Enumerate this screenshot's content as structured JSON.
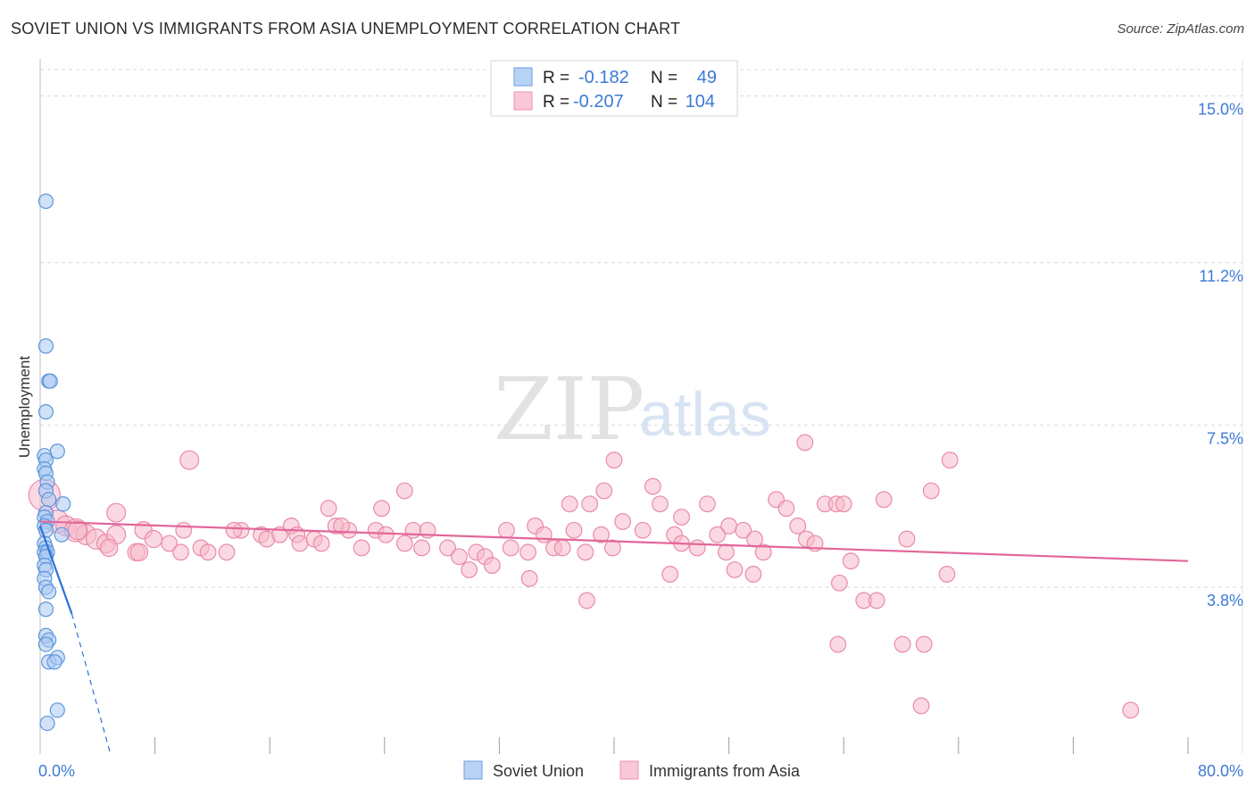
{
  "title": "SOVIET UNION VS IMMIGRANTS FROM ASIA UNEMPLOYMENT CORRELATION CHART",
  "source": "Source: ZipAtlas.com",
  "watermark": {
    "part1": "ZIP",
    "part2": "atlas"
  },
  "stats_box": {
    "rows": [
      {
        "r_label": "R =",
        "r_value": "-0.182",
        "n_label": "N =",
        "n_value": "49"
      },
      {
        "r_label": "R =",
        "r_value": "-0.207",
        "n_label": "N =",
        "n_value": "104"
      }
    ]
  },
  "colors": {
    "blue_fill": "#a9c8f2",
    "blue_stroke": "#5d95dc",
    "blue_line": "#2b72d6",
    "pink_fill": "#f7b9cb",
    "pink_stroke": "#e98aaa",
    "pink_line": "#e2679a",
    "grid": "#d9d9d9",
    "axis_text": "#3d7ad6"
  },
  "chart_data": {
    "type": "scatter",
    "title": "SOVIET UNION VS IMMIGRANTS FROM ASIA UNEMPLOYMENT CORRELATION CHART",
    "xlabel": "",
    "ylabel": "Unemployment",
    "xlim": [
      0,
      80
    ],
    "ylim": [
      0,
      15.6
    ],
    "x_tick_labels": [
      {
        "value": 0,
        "label": "0.0%"
      },
      {
        "value": 80,
        "label": "80.0%"
      }
    ],
    "x_minor_ticks": [
      8,
      16,
      24,
      32,
      40,
      48,
      56,
      64,
      72,
      80
    ],
    "y_ticks": [
      {
        "value": 3.8,
        "label": "3.8%"
      },
      {
        "value": 7.5,
        "label": "7.5%"
      },
      {
        "value": 11.2,
        "label": "11.2%"
      },
      {
        "value": 15.0,
        "label": "15.0%"
      }
    ],
    "legend_position": "bottom-center",
    "series": [
      {
        "name": "Soviet Union",
        "color": "blue",
        "r": -0.182,
        "n": 49,
        "trend": {
          "x0": 0.0,
          "y0": 5.2,
          "x1": 2.2,
          "y1": 3.2,
          "dash_x1": 4.9,
          "dash_y1": 0.0
        },
        "points": [
          [
            0.4,
            12.6,
            1
          ],
          [
            0.4,
            9.3,
            1
          ],
          [
            0.6,
            8.5,
            1
          ],
          [
            0.7,
            8.5,
            1
          ],
          [
            0.4,
            7.8,
            1
          ],
          [
            1.2,
            6.9,
            1
          ],
          [
            0.3,
            6.8,
            1
          ],
          [
            0.4,
            6.7,
            1
          ],
          [
            0.3,
            6.5,
            1
          ],
          [
            0.4,
            6.4,
            1
          ],
          [
            0.5,
            6.2,
            1
          ],
          [
            0.4,
            6.0,
            1
          ],
          [
            0.6,
            5.8,
            1
          ],
          [
            1.6,
            5.7,
            1
          ],
          [
            0.4,
            5.5,
            1
          ],
          [
            0.3,
            5.4,
            1
          ],
          [
            0.5,
            5.3,
            1
          ],
          [
            0.3,
            5.2,
            1
          ],
          [
            0.4,
            5.1,
            1
          ],
          [
            1.5,
            5.0,
            1
          ],
          [
            0.3,
            4.8,
            1
          ],
          [
            0.4,
            4.7,
            1
          ],
          [
            0.3,
            4.6,
            1
          ],
          [
            0.5,
            4.6,
            1
          ],
          [
            0.4,
            4.5,
            1
          ],
          [
            0.3,
            4.3,
            1
          ],
          [
            0.4,
            4.2,
            1
          ],
          [
            0.3,
            4.0,
            1
          ],
          [
            0.4,
            3.8,
            1
          ],
          [
            0.6,
            3.7,
            1
          ],
          [
            0.4,
            3.3,
            1
          ],
          [
            0.4,
            2.7,
            1
          ],
          [
            0.6,
            2.6,
            1
          ],
          [
            0.4,
            2.5,
            1
          ],
          [
            0.6,
            2.1,
            1
          ],
          [
            1.2,
            2.2,
            1
          ],
          [
            1.0,
            2.1,
            1
          ],
          [
            1.2,
            1.0,
            1
          ],
          [
            0.5,
            0.7,
            1
          ]
        ]
      },
      {
        "name": "Immigrants from Asia",
        "color": "pink",
        "r": -0.207,
        "n": 104,
        "trend": {
          "x0": 0.0,
          "y0": 5.3,
          "x1": 80.0,
          "y1": 4.4
        },
        "points": [
          [
            0.3,
            5.9,
            2.2
          ],
          [
            1.2,
            5.3,
            1.6
          ],
          [
            1.8,
            5.2,
            1.4
          ],
          [
            2.5,
            5.1,
            1.6
          ],
          [
            3.2,
            5.0,
            1.4
          ],
          [
            3.9,
            4.9,
            1.4
          ],
          [
            4.6,
            4.8,
            1.3
          ],
          [
            5.3,
            5.0,
            1.3
          ],
          [
            2.6,
            5.1,
            1.3
          ],
          [
            4.8,
            4.7,
            1.2
          ],
          [
            5.3,
            5.5,
            1.3
          ],
          [
            7.2,
            5.1,
            1.2
          ],
          [
            6.7,
            4.6,
            1.2
          ],
          [
            7.9,
            4.9,
            1.2
          ],
          [
            9.0,
            4.8,
            1.1
          ],
          [
            9.8,
            4.6,
            1.1
          ],
          [
            10.0,
            5.1,
            1.1
          ],
          [
            11.2,
            4.7,
            1.1
          ],
          [
            11.7,
            4.6,
            1.1
          ],
          [
            6.9,
            4.6,
            1.2
          ],
          [
            10.4,
            6.7,
            1.3
          ],
          [
            13.0,
            4.6,
            1.1
          ],
          [
            15.4,
            5.0,
            1.1
          ],
          [
            14.0,
            5.1,
            1.1
          ],
          [
            13.5,
            5.1,
            1.1
          ],
          [
            15.8,
            4.9,
            1.1
          ],
          [
            16.7,
            5.0,
            1.1
          ],
          [
            17.5,
            5.2,
            1.1
          ],
          [
            17.9,
            5.0,
            1.1
          ],
          [
            18.1,
            4.8,
            1.1
          ],
          [
            19.1,
            4.9,
            1.1
          ],
          [
            19.6,
            4.8,
            1.1
          ],
          [
            20.6,
            5.2,
            1.1
          ],
          [
            21.5,
            5.1,
            1.1
          ],
          [
            21.0,
            5.2,
            1.1
          ],
          [
            23.4,
            5.1,
            1.1
          ],
          [
            20.1,
            5.6,
            1.1
          ],
          [
            22.4,
            4.7,
            1.1
          ],
          [
            23.8,
            5.6,
            1.1
          ],
          [
            24.1,
            5.0,
            1.1
          ],
          [
            25.4,
            4.8,
            1.1
          ],
          [
            26.6,
            4.7,
            1.1
          ],
          [
            26.0,
            5.1,
            1.1
          ],
          [
            27.0,
            5.1,
            1.1
          ],
          [
            28.4,
            4.7,
            1.1
          ],
          [
            29.2,
            4.5,
            1.1
          ],
          [
            30.4,
            4.6,
            1.1
          ],
          [
            31.0,
            4.5,
            1.1
          ],
          [
            29.9,
            4.2,
            1.1
          ],
          [
            31.5,
            4.3,
            1.1
          ],
          [
            32.5,
            5.1,
            1.1
          ],
          [
            32.8,
            4.7,
            1.1
          ],
          [
            34.0,
            4.6,
            1.1
          ],
          [
            34.5,
            5.2,
            1.1
          ],
          [
            35.1,
            5.0,
            1.1
          ],
          [
            35.8,
            4.7,
            1.1
          ],
          [
            36.4,
            4.7,
            1.1
          ],
          [
            37.2,
            5.1,
            1.1
          ],
          [
            38.0,
            4.6,
            1.1
          ],
          [
            36.9,
            5.7,
            1.1
          ],
          [
            38.3,
            5.7,
            1.1
          ],
          [
            39.1,
            5.0,
            1.1
          ],
          [
            39.9,
            4.7,
            1.1
          ],
          [
            40.6,
            5.3,
            1.1
          ],
          [
            39.3,
            6.0,
            1.1
          ],
          [
            42.0,
            5.1,
            1.1
          ],
          [
            42.7,
            6.1,
            1.1
          ],
          [
            43.2,
            5.7,
            1.1
          ],
          [
            44.2,
            5.0,
            1.1
          ],
          [
            44.7,
            5.4,
            1.1
          ],
          [
            44.7,
            4.8,
            1.1
          ],
          [
            45.8,
            4.7,
            1.1
          ],
          [
            46.5,
            5.7,
            1.1
          ],
          [
            47.2,
            5.0,
            1.1
          ],
          [
            48.0,
            5.2,
            1.1
          ],
          [
            48.4,
            4.2,
            1.1
          ],
          [
            47.8,
            4.6,
            1.1
          ],
          [
            49.0,
            5.1,
            1.1
          ],
          [
            49.8,
            4.9,
            1.1
          ],
          [
            50.4,
            4.6,
            1.1
          ],
          [
            51.3,
            5.8,
            1.1
          ],
          [
            52.0,
            5.6,
            1.1
          ],
          [
            52.8,
            5.2,
            1.1
          ],
          [
            53.4,
            4.9,
            1.1
          ],
          [
            54.7,
            5.7,
            1.1
          ],
          [
            55.5,
            5.7,
            1.1
          ],
          [
            56.0,
            5.7,
            1.1
          ],
          [
            54.0,
            4.8,
            1.1
          ],
          [
            56.5,
            4.4,
            1.1
          ],
          [
            57.4,
            3.5,
            1.1
          ],
          [
            58.8,
            5.8,
            1.1
          ],
          [
            60.4,
            4.9,
            1.1
          ],
          [
            62.1,
            6.0,
            1.1
          ],
          [
            63.4,
            6.7,
            1.1
          ],
          [
            53.3,
            7.1,
            1.1
          ],
          [
            40.0,
            6.7,
            1.1
          ],
          [
            25.4,
            6.0,
            1.1
          ],
          [
            34.1,
            4.0,
            1.1
          ],
          [
            38.1,
            3.5,
            1.1
          ],
          [
            43.9,
            4.1,
            1.1
          ],
          [
            49.7,
            4.1,
            1.1
          ],
          [
            55.7,
            3.9,
            1.1
          ],
          [
            58.3,
            3.5,
            1.1
          ],
          [
            60.1,
            2.5,
            1.1
          ],
          [
            63.2,
            4.1,
            1.1
          ],
          [
            61.6,
            2.5,
            1.1
          ],
          [
            61.4,
            1.1,
            1.1
          ],
          [
            76.0,
            1.0,
            1.1
          ],
          [
            55.6,
            2.5,
            1.1
          ]
        ]
      }
    ]
  },
  "legend": {
    "items": [
      "Soviet Union",
      "Immigrants from Asia"
    ]
  }
}
